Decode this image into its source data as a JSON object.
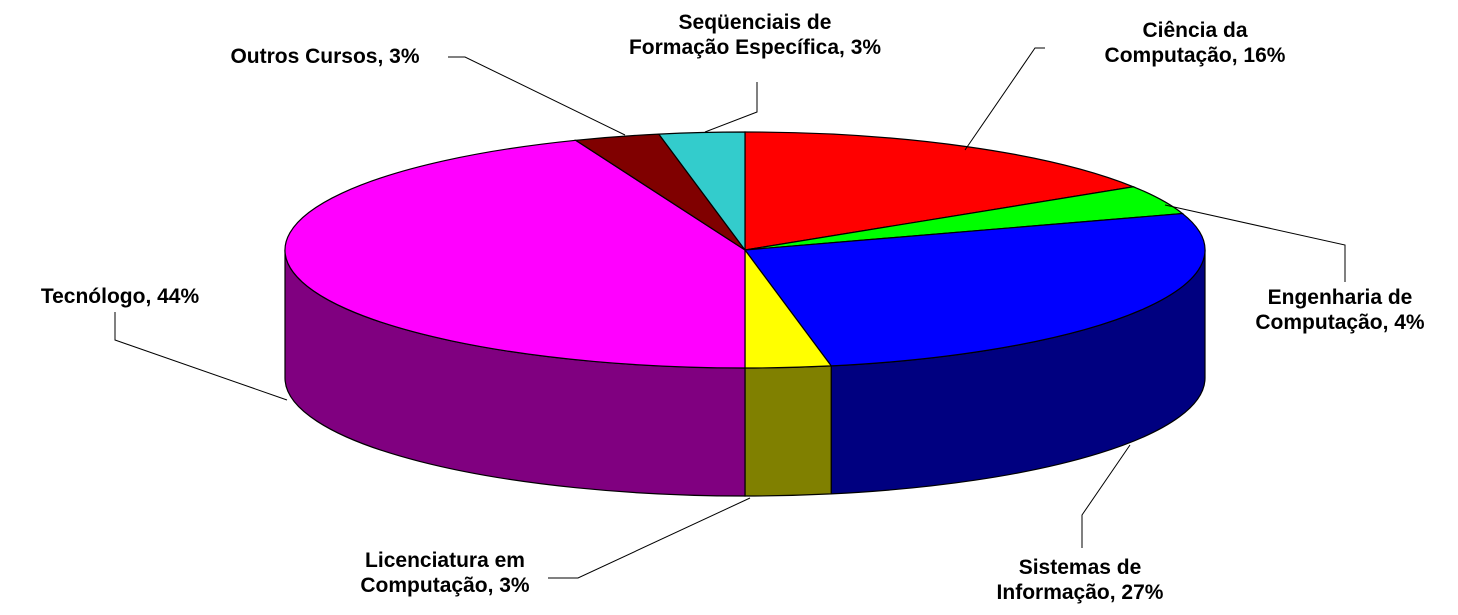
{
  "chart_data": {
    "type": "pie3d",
    "values": [
      16,
      4,
      27,
      3,
      44,
      3,
      3
    ],
    "value_labels": [
      "Ciência da\nComputação, 16%",
      "Engenharia de\nComputação, 4%",
      "Sistemas de\nInformação, 27%",
      "Licenciatura em\nComputação, 3%",
      "Tecnólogo, 44%",
      "Outros Cursos, 3%",
      "Seqüenciais de\nFormação Específica, 3%"
    ],
    "colors": [
      "#ff0000",
      "#00ff00",
      "#0000ff",
      "#ffff00",
      "#ff00ff",
      "#800000",
      "#33cccc"
    ]
  }
}
